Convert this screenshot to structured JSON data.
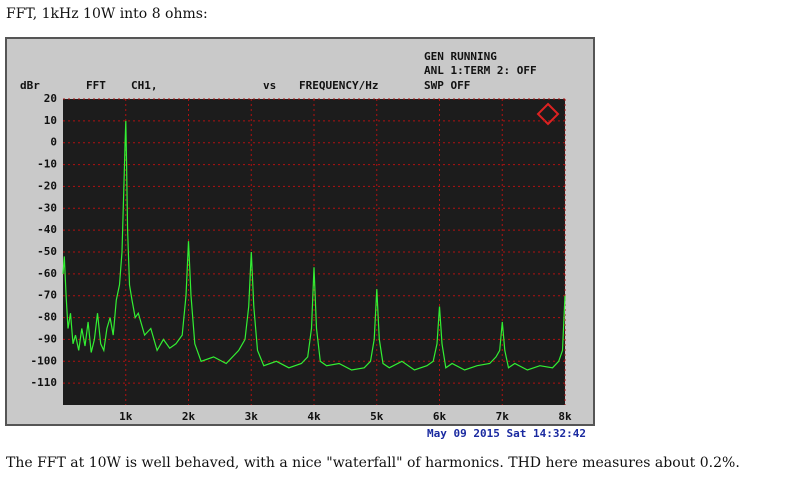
{
  "caption_top": "FFT, 1kHz 10W into 8 ohms:",
  "caption_bottom": "The FFT at 10W is well behaved, with a nice \"waterfall\" of harmonics.  THD here measures about 0.2%.",
  "chart_data": {
    "type": "line",
    "status": [
      "GEN RUNNING",
      "ANL 1:TERM 2: OFF",
      "SWP OFF"
    ],
    "y_label": "dBr",
    "header": [
      "FFT",
      "CH1,",
      "vs",
      "FREQUENCY/Hz"
    ],
    "timestamp": "May 09 2015 Sat 14:32:42",
    "grid": true,
    "xlim": [
      0,
      8000
    ],
    "ylim": [
      -120,
      20
    ],
    "xticks": [
      {
        "value": 1000,
        "label": "1k"
      },
      {
        "value": 2000,
        "label": "2k"
      },
      {
        "value": 3000,
        "label": "3k"
      },
      {
        "value": 4000,
        "label": "4k"
      },
      {
        "value": 5000,
        "label": "5k"
      },
      {
        "value": 6000,
        "label": "6k"
      },
      {
        "value": 7000,
        "label": "7k"
      },
      {
        "value": 8000,
        "label": "8k"
      }
    ],
    "yticks": [
      20,
      10,
      0,
      -10,
      -20,
      -30,
      -40,
      -50,
      -60,
      -70,
      -80,
      -90,
      -100,
      -110
    ],
    "x": [
      0,
      20,
      50,
      80,
      120,
      160,
      200,
      250,
      300,
      350,
      400,
      450,
      500,
      550,
      600,
      650,
      700,
      750,
      800,
      850,
      900,
      940,
      970,
      990,
      1000,
      1010,
      1030,
      1060,
      1100,
      1150,
      1200,
      1300,
      1400,
      1500,
      1600,
      1700,
      1800,
      1900,
      1960,
      2000,
      2040,
      2100,
      2200,
      2400,
      2600,
      2800,
      2900,
      2960,
      3000,
      3040,
      3100,
      3200,
      3400,
      3600,
      3800,
      3900,
      3960,
      4000,
      4040,
      4100,
      4200,
      4400,
      4600,
      4800,
      4900,
      4960,
      5000,
      5040,
      5100,
      5200,
      5400,
      5600,
      5800,
      5900,
      5960,
      6000,
      6040,
      6100,
      6200,
      6400,
      6600,
      6800,
      6900,
      6960,
      7000,
      7040,
      7100,
      7200,
      7400,
      7600,
      7800,
      7900,
      7960,
      8000
    ],
    "series": [
      {
        "color": "#33ee33",
        "values": [
          -60,
          -52,
          -70,
          -85,
          -78,
          -92,
          -88,
          -95,
          -85,
          -93,
          -82,
          -96,
          -90,
          -78,
          -92,
          -95,
          -85,
          -80,
          -88,
          -72,
          -65,
          -50,
          -20,
          0,
          10,
          -5,
          -40,
          -65,
          -72,
          -80,
          -78,
          -88,
          -85,
          -95,
          -90,
          -94,
          -92,
          -88,
          -70,
          -45,
          -70,
          -92,
          -100,
          -98,
          -101,
          -95,
          -90,
          -75,
          -50,
          -75,
          -95,
          -102,
          -100,
          -103,
          -101,
          -98,
          -85,
          -57,
          -85,
          -100,
          -102,
          -101,
          -104,
          -103,
          -100,
          -90,
          -67,
          -90,
          -101,
          -103,
          -100,
          -104,
          -102,
          -100,
          -92,
          -75,
          -92,
          -103,
          -101,
          -104,
          -102,
          -101,
          -98,
          -95,
          -82,
          -95,
          -103,
          -101,
          -104,
          -102,
          -103,
          -100,
          -95,
          -70
        ]
      }
    ]
  }
}
